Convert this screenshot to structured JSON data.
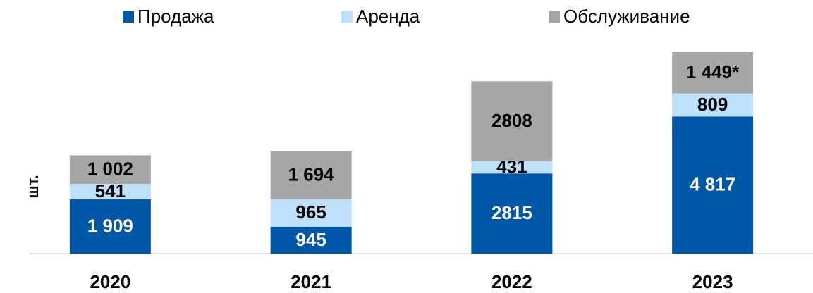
{
  "chart_data": {
    "type": "stacked_bar",
    "y_label": "шт.",
    "categories": [
      "2020",
      "2021",
      "2022",
      "2023"
    ],
    "series": [
      {
        "name": "Продажа",
        "color": "#0057a8",
        "values": [
          1909,
          945,
          2815,
          4817
        ],
        "value_labels": [
          "1 909",
          "945",
          "2815",
          "4 817"
        ]
      },
      {
        "name": "Аренда",
        "color": "#bde0fb",
        "values": [
          541,
          965,
          431,
          809
        ],
        "value_labels": [
          "541",
          "965",
          "431",
          "809"
        ]
      },
      {
        "name": "Обслуживание",
        "color": "#a6a6a6",
        "values": [
          1002,
          1694,
          2808,
          1449
        ],
        "value_labels": [
          "1 002",
          "1 694",
          "2808",
          "1 449*"
        ]
      }
    ],
    "legend": "top"
  }
}
